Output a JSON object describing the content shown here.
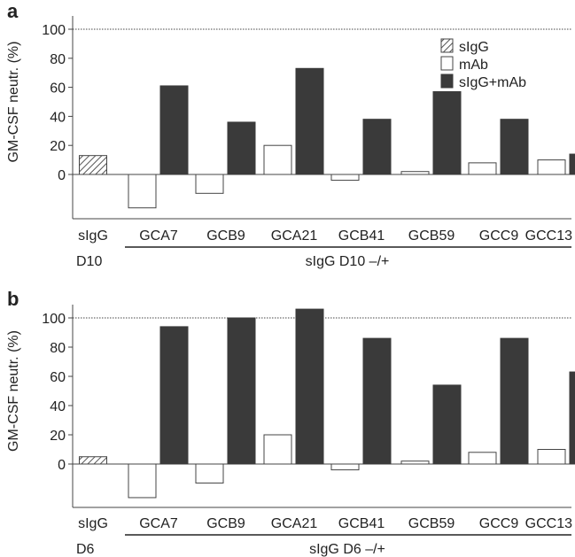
{
  "colors": {
    "sigG_fill": "#ffffff",
    "sigG_hatch": "#555555",
    "mAb_fill": "#ffffff",
    "combo_fill": "#3a3a3a",
    "axis": "#444444",
    "reference_line": "#444444"
  },
  "chart_data": [
    {
      "type": "bar",
      "panel_label": "a",
      "ylabel": "GM-CSF neutr. (%)",
      "yticks": [
        0,
        20,
        40,
        60,
        80,
        100
      ],
      "ylim": [
        -25,
        110
      ],
      "reference_line": 100,
      "grid": false,
      "legend": {
        "placement": "top-right",
        "entries": [
          "sIgG",
          "mAb",
          "sIgG+mAb"
        ]
      },
      "categories": [
        "sIgG",
        "GCA7",
        "GCB9",
        "GCA21",
        "GCB41",
        "GCB59",
        "GCC9",
        "GCC13"
      ],
      "sublabel_left": "D10",
      "group_label": "sIgG D10 –/+",
      "series": [
        {
          "name": "sIgG",
          "values": [
            13,
            null,
            null,
            null,
            null,
            null,
            null,
            null
          ]
        },
        {
          "name": "mAb",
          "values": [
            null,
            -23,
            -13,
            20,
            -4,
            2,
            8,
            10
          ]
        },
        {
          "name": "sIgG+mAb",
          "values": [
            null,
            61,
            36,
            73,
            38,
            57,
            38,
            14
          ]
        }
      ]
    },
    {
      "type": "bar",
      "panel_label": "b",
      "ylabel": "GM-CSF neutr. (%)",
      "yticks": [
        0,
        20,
        40,
        60,
        80,
        100
      ],
      "ylim": [
        -25,
        110
      ],
      "reference_line": 100,
      "grid": false,
      "legend": null,
      "categories": [
        "sIgG",
        "GCA7",
        "GCB9",
        "GCA21",
        "GCB41",
        "GCB59",
        "GCC9",
        "GCC13"
      ],
      "sublabel_left": "D6",
      "group_label": "sIgG D6 –/+",
      "series": [
        {
          "name": "sIgG",
          "values": [
            5,
            null,
            null,
            null,
            null,
            null,
            null,
            null
          ]
        },
        {
          "name": "mAb",
          "values": [
            null,
            -23,
            -13,
            20,
            -4,
            2,
            8,
            10
          ]
        },
        {
          "name": "sIgG+mAb",
          "values": [
            null,
            94,
            100,
            106,
            86,
            54,
            86,
            63
          ]
        }
      ]
    }
  ]
}
